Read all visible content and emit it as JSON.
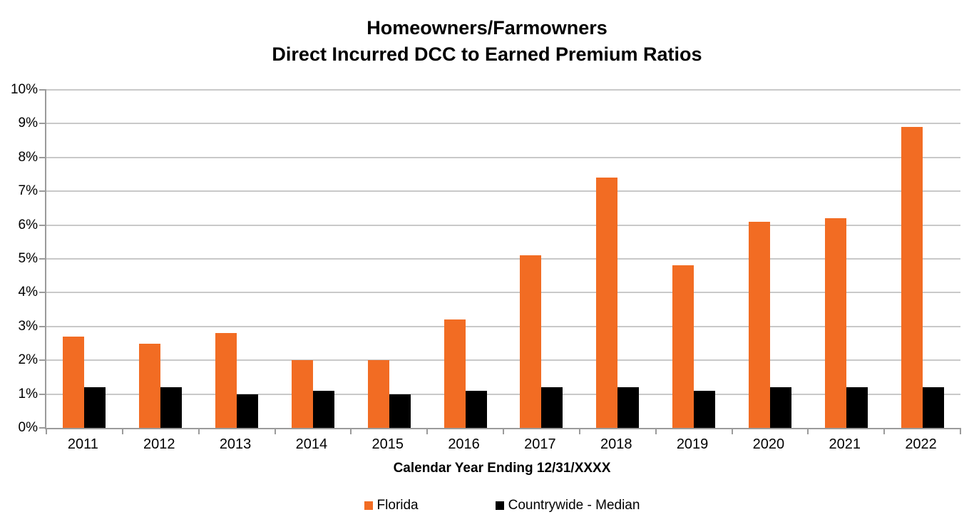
{
  "chart_data": {
    "type": "bar",
    "title": "Homeowners/Farmowners Direct Incurred DCC to Earned Premium Ratios",
    "title_line1": "Homeowners/Farmowners",
    "title_line2": "Direct Incurred DCC to Earned Premium Ratios",
    "xlabel": "Calendar Year Ending 12/31/XXXX",
    "ylabel": "",
    "categories": [
      "2011",
      "2012",
      "2013",
      "2014",
      "2015",
      "2016",
      "2017",
      "2018",
      "2019",
      "2020",
      "2021",
      "2022"
    ],
    "series": [
      {
        "name": "Florida",
        "color": "#F26C23",
        "values": [
          2.7,
          2.5,
          2.8,
          2.0,
          2.0,
          3.2,
          5.1,
          7.4,
          4.8,
          6.1,
          6.2,
          8.9
        ]
      },
      {
        "name": "Countrywide - Median",
        "color": "#000000",
        "values": [
          1.2,
          1.2,
          1.0,
          1.1,
          1.0,
          1.1,
          1.2,
          1.2,
          1.1,
          1.2,
          1.2,
          1.2
        ]
      }
    ],
    "ylim": [
      0,
      10
    ],
    "ytick_step": 1,
    "ytick_labels": [
      "0%",
      "1%",
      "2%",
      "3%",
      "4%",
      "5%",
      "6%",
      "7%",
      "8%",
      "9%",
      "10%"
    ],
    "grid": true,
    "legend_position": "bottom",
    "colors": {
      "gridline": "#C9C9C9",
      "axis": "#9B9B9B",
      "background": "#FFFFFF",
      "text": "#000000"
    }
  }
}
